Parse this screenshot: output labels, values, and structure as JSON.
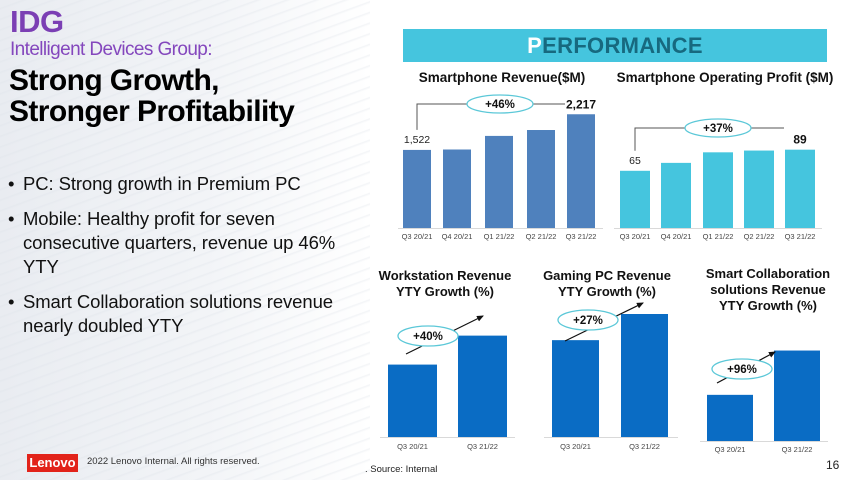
{
  "left": {
    "brand": "IDG",
    "subtitle": "Intelligent Devices Group:",
    "headline_line1": "Strong Growth,",
    "headline_line2": "Stronger Profitability",
    "bullets": [
      "PC: Strong growth in Premium PC",
      "Mobile: Healthy profit for seven consecutive quarters, revenue up 46% YTY",
      "Smart Collaboration solutions revenue nearly doubled YTY"
    ],
    "bullet_glyph": "•"
  },
  "banner": {
    "first_letter": "P",
    "rest": "ERFORMANCE"
  },
  "footer": {
    "logo": "Lenovo",
    "copyright": "2022 Lenovo Internal. All rights reserved.",
    "source": ". Source: Internal",
    "page_number": "16"
  },
  "colors": {
    "purple": "#7b3fb4",
    "banner": "#45c5de",
    "revenue_bar": "#4f81bd",
    "profit_bar": "#45c5de",
    "growth_bar": "#0a6cc4",
    "lenovo_red": "#e2231a",
    "ellipse_stroke": "#5cc8d8"
  },
  "chart_data": [
    {
      "id": "smartphone_revenue",
      "type": "bar",
      "title": "Smartphone Revenue($M)",
      "categories": [
        "Q3 20/21",
        "Q4 20/21",
        "Q1 21/22",
        "Q2 21/22",
        "Q3 21/22"
      ],
      "values": [
        1522,
        1530,
        1795,
        1910,
        2217
      ],
      "data_labels": [
        "1,522",
        null,
        null,
        null,
        "2,217"
      ],
      "annotation": "+46%",
      "ylim": [
        0,
        2300
      ],
      "xlabel": "",
      "ylabel": "",
      "grid": false,
      "legend": "none"
    },
    {
      "id": "smartphone_operating_profit",
      "type": "bar",
      "title": "Smartphone Operating Profit ($M)",
      "categories": [
        "Q3 20/21",
        "Q4 20/21",
        "Q1 21/22",
        "Q2 21/22",
        "Q3 21/22"
      ],
      "values": [
        65,
        74,
        86,
        88,
        89
      ],
      "data_labels": [
        "65",
        null,
        null,
        null,
        "89"
      ],
      "annotation": "+37%",
      "ylim": [
        0,
        100
      ],
      "xlabel": "",
      "ylabel": "",
      "grid": false,
      "legend": "none"
    },
    {
      "id": "workstation_growth",
      "type": "bar",
      "title_line1": "Workstation Revenue",
      "title_line2": "YTY Growth (%)",
      "categories": [
        "Q3 20/21",
        "Q3 21/22"
      ],
      "values": [
        100,
        140
      ],
      "annotation": "+40%",
      "ylim": [
        0,
        145
      ],
      "xlabel": "",
      "ylabel": "",
      "grid": false,
      "legend": "none"
    },
    {
      "id": "gaming_pc_growth",
      "type": "bar",
      "title_line1": "Gaming PC Revenue",
      "title_line2": "YTY Growth (%)",
      "categories": [
        "Q3 20/21",
        "Q3 21/22"
      ],
      "values": [
        100,
        127
      ],
      "annotation": "+27%",
      "ylim": [
        0,
        127
      ],
      "xlabel": "",
      "ylabel": "",
      "grid": false,
      "legend": "none"
    },
    {
      "id": "smart_collaboration_growth",
      "type": "bar",
      "title_line1": "Smart Collaboration",
      "title_line2": "solutions Revenue",
      "title_line3": "YTY Growth (%)",
      "categories": [
        "Q3 20/21",
        "Q3 21/22"
      ],
      "values": [
        100,
        196
      ],
      "annotation": "+96%",
      "ylim": [
        0,
        208
      ],
      "xlabel": "",
      "ylabel": "",
      "grid": false,
      "legend": "none"
    }
  ]
}
